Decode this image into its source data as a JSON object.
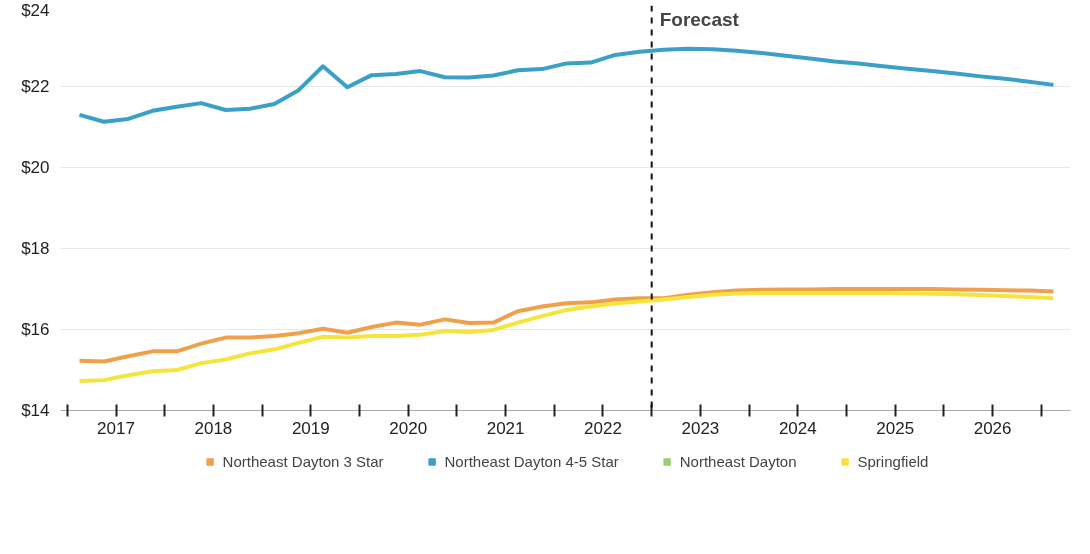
{
  "chart_data": {
    "type": "line",
    "x": [
      2017.125,
      2017.375,
      2017.625,
      2017.875,
      2018.125,
      2018.375,
      2018.625,
      2018.875,
      2019.125,
      2019.375,
      2019.625,
      2019.875,
      2020.125,
      2020.375,
      2020.625,
      2020.875,
      2021.125,
      2021.375,
      2021.625,
      2021.875,
      2022.125,
      2022.375,
      2022.625,
      2022.875,
      2023.125,
      2023.375,
      2023.625,
      2023.875,
      2024.125,
      2024.375,
      2024.625,
      2024.875,
      2025.125,
      2025.375,
      2025.625,
      2025.875,
      2026.125,
      2026.375,
      2026.625,
      2026.875,
      2027.125
    ],
    "series": [
      {
        "name": "Northeast Dayton 3 Star",
        "color": "#f0a04b",
        "values": [
          15.23,
          15.21,
          15.34,
          15.46,
          15.46,
          15.65,
          15.8,
          15.8,
          15.84,
          15.91,
          16.02,
          15.92,
          16.06,
          16.17,
          16.12,
          16.25,
          16.16,
          16.17,
          16.45,
          16.57,
          16.65,
          16.67,
          16.74,
          16.77,
          16.77,
          16.86,
          16.92,
          16.96,
          16.98,
          16.99,
          16.99,
          17.0,
          17.0,
          17.0,
          17.0,
          17.0,
          16.99,
          16.98,
          16.97,
          16.96,
          16.94
        ]
      },
      {
        "name": "Northeast Dayton 4-5 Star",
        "color": "#3aa0c8",
        "values": [
          21.3,
          21.13,
          21.2,
          21.4,
          21.5,
          21.59,
          21.42,
          21.45,
          21.57,
          21.91,
          22.5,
          21.98,
          22.28,
          22.31,
          22.38,
          22.23,
          22.22,
          22.27,
          22.4,
          22.43,
          22.57,
          22.59,
          22.78,
          22.86,
          22.91,
          22.93,
          22.92,
          22.88,
          22.83,
          22.76,
          22.69,
          22.62,
          22.57,
          22.5,
          22.44,
          22.38,
          22.32,
          22.25,
          22.19,
          22.12,
          22.04
        ]
      },
      {
        "name": "Northeast Dayton",
        "color": "#9dcc6c",
        "values": [
          null,
          null,
          null,
          null,
          null,
          null,
          null,
          null,
          null,
          null,
          null,
          null,
          null,
          null,
          null,
          null,
          null,
          null,
          null,
          null,
          null,
          null,
          null,
          null,
          null,
          null,
          null,
          null,
          null,
          null,
          null,
          null,
          null,
          null,
          null,
          null,
          null,
          null,
          null,
          null,
          null
        ]
      },
      {
        "name": "Springfield",
        "color": "#f5e43c",
        "values": [
          14.73,
          14.75,
          14.87,
          14.97,
          15.0,
          15.17,
          15.26,
          15.41,
          15.51,
          15.67,
          15.82,
          15.8,
          15.84,
          15.84,
          15.87,
          15.96,
          15.94,
          15.99,
          16.17,
          16.33,
          16.48,
          16.57,
          16.64,
          16.69,
          16.74,
          16.8,
          16.86,
          16.89,
          16.9,
          16.9,
          16.9,
          16.9,
          16.9,
          16.9,
          16.89,
          16.88,
          16.87,
          16.85,
          16.83,
          16.8,
          16.77
        ]
      }
    ],
    "xlim": [
      2016.93,
      2027.3
    ],
    "xticks": [
      {
        "value": 2017,
        "label": null
      },
      {
        "value": 2017.5,
        "label": "2017"
      },
      {
        "value": 2018,
        "label": null
      },
      {
        "value": 2018.5,
        "label": "2018"
      },
      {
        "value": 2019,
        "label": null
      },
      {
        "value": 2019.5,
        "label": "2019"
      },
      {
        "value": 2020,
        "label": null
      },
      {
        "value": 2020.5,
        "label": "2020"
      },
      {
        "value": 2021,
        "label": null
      },
      {
        "value": 2021.5,
        "label": "2021"
      },
      {
        "value": 2022,
        "label": null
      },
      {
        "value": 2022.5,
        "label": "2022"
      },
      {
        "value": 2023,
        "label": null
      },
      {
        "value": 2023.5,
        "label": "2023"
      },
      {
        "value": 2024,
        "label": null
      },
      {
        "value": 2024.5,
        "label": "2024"
      },
      {
        "value": 2025,
        "label": null
      },
      {
        "value": 2025.5,
        "label": "2025"
      },
      {
        "value": 2026,
        "label": null
      },
      {
        "value": 2026.5,
        "label": "2026"
      },
      {
        "value": 2027,
        "label": null
      }
    ],
    "ylim": [
      14,
      24
    ],
    "yticks": [
      {
        "value": 14,
        "label": "$14"
      },
      {
        "value": 16,
        "label": "$16"
      },
      {
        "value": 18,
        "label": "$18"
      },
      {
        "value": 20,
        "label": "$20"
      },
      {
        "value": 22,
        "label": "$22"
      },
      {
        "value": 24,
        "label": "$24"
      }
    ],
    "ref_lines": [
      {
        "axis": "x",
        "value": 2023,
        "label": "Forecast",
        "color": "#111111",
        "line_style": "dashed"
      }
    ],
    "grid": "y",
    "legend": "bottom",
    "marker": "none",
    "line_style": "solid"
  }
}
